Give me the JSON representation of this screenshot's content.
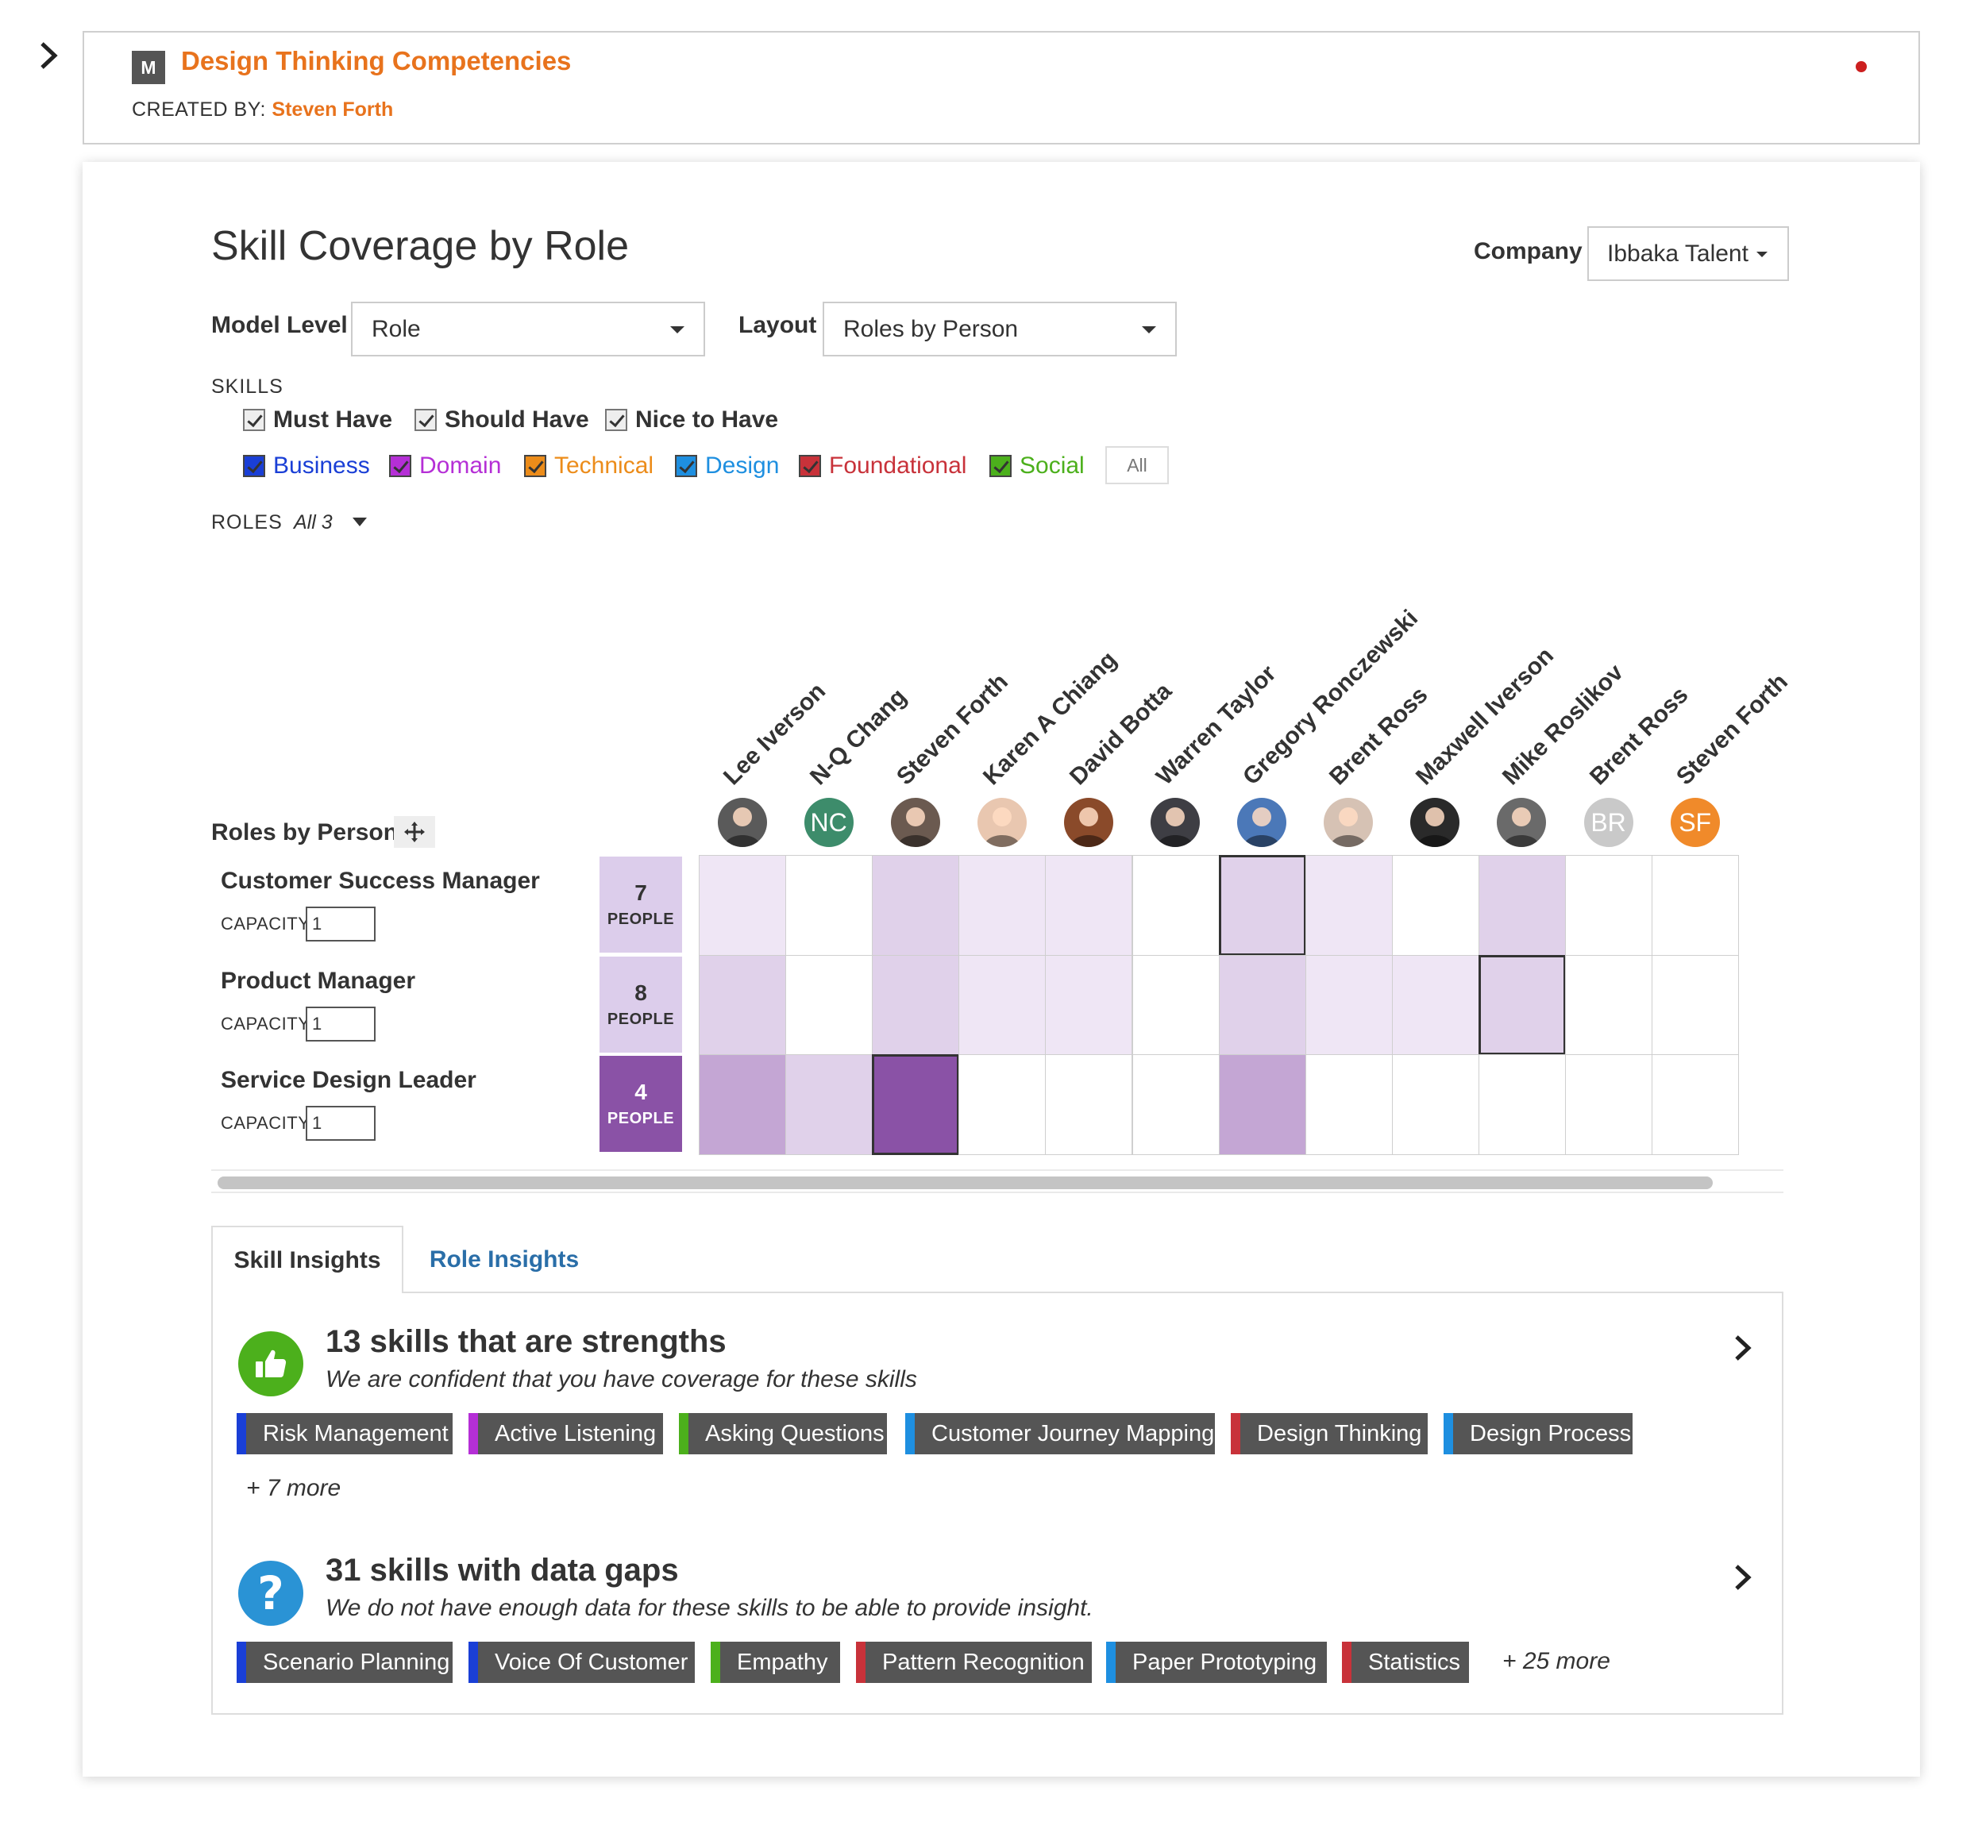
{
  "model": {
    "badge": "M",
    "title": "Design Thinking Competencies",
    "created_by_label": "CREATED BY:",
    "created_by": "Steven Forth"
  },
  "page_title": "Skill Coverage by Role",
  "company": {
    "label": "Company",
    "value": "Ibbaka Talent"
  },
  "model_level": {
    "label": "Model Level",
    "value": "Role"
  },
  "layout": {
    "label": "Layout",
    "value": "Roles by Person"
  },
  "skills": {
    "heading": "SKILLS",
    "levels": [
      "Must Have",
      "Should Have",
      "Nice to Have"
    ],
    "categories": [
      {
        "label": "Business",
        "color": "#1a3fd6"
      },
      {
        "label": "Domain",
        "color": "#b52fd6"
      },
      {
        "label": "Technical",
        "color": "#ec8c1a"
      },
      {
        "label": "Design",
        "color": "#1e8fe0"
      },
      {
        "label": "Foundational",
        "color": "#c8323a"
      },
      {
        "label": "Social",
        "color": "#4cb01c"
      }
    ],
    "all_button": "All"
  },
  "roles_filter": {
    "label": "ROLES",
    "value": "All 3"
  },
  "matrix": {
    "title": "Roles by Person",
    "capacity_label": "CAPACITY",
    "people_label": "PEOPLE",
    "people": [
      {
        "name": "Lee Iverson",
        "avatar": "photo",
        "bg": "#5a5a5a"
      },
      {
        "name": "N-Q Chang",
        "avatar": "NC",
        "bg": "#3d8c6b"
      },
      {
        "name": "Steven Forth",
        "avatar": "photo",
        "bg": "#6b5a50"
      },
      {
        "name": "Karen A Chiang",
        "avatar": "photo",
        "bg": "#e9c7b0"
      },
      {
        "name": "David Botta",
        "avatar": "photo",
        "bg": "#8a4a2a"
      },
      {
        "name": "Warren Taylor",
        "avatar": "photo",
        "bg": "#3e3e44"
      },
      {
        "name": "Gregory Ronczewski",
        "avatar": "photo",
        "bg": "#4b78b8"
      },
      {
        "name": "Brent Ross",
        "avatar": "photo",
        "bg": "#d6c2b4"
      },
      {
        "name": "Maxwell Iverson",
        "avatar": "photo",
        "bg": "#2a2a2a"
      },
      {
        "name": "Mike Roslikov",
        "avatar": "photo",
        "bg": "#6a6a6a"
      },
      {
        "name": "Brent Ross",
        "avatar": "BR",
        "bg": "#c9c9c9"
      },
      {
        "name": "Steven Forth",
        "avatar": "SF",
        "bg": "#f08a2a"
      }
    ],
    "roles": [
      {
        "name": "Customer Success Manager",
        "capacity": "1",
        "people": "7",
        "box_color": "#dccdeb",
        "text_color": "#333333",
        "levels": [
          1,
          0,
          2,
          1,
          1,
          0,
          2,
          1,
          0,
          2,
          0,
          0
        ],
        "selected": 6
      },
      {
        "name": "Product Manager",
        "capacity": "1",
        "people": "8",
        "box_color": "#dccdeb",
        "text_color": "#333333",
        "levels": [
          2,
          0,
          2,
          1,
          1,
          0,
          2,
          1,
          1,
          2,
          0,
          0
        ],
        "selected": 9
      },
      {
        "name": "Service Design Leader",
        "capacity": "1",
        "people": "4",
        "box_color": "#8a52a6",
        "text_color": "#ffffff",
        "levels": [
          3,
          2,
          4,
          0,
          0,
          0,
          3,
          0,
          0,
          0,
          0,
          0
        ],
        "selected": 2
      }
    ],
    "level_colors": [
      "#ffffff",
      "#efe6f5",
      "#e0d1ea",
      "#c4a6d4",
      "#8a52a6"
    ]
  },
  "tabs": {
    "skill": "Skill Insights",
    "role": "Role Insights"
  },
  "insights": [
    {
      "title": "13 skills that are strengths",
      "subtitle": "We are confident that you have coverage for these skills",
      "icon": "thumbs-up-icon",
      "icon_color": "#4cb01c",
      "tags": [
        {
          "label": "Risk Management",
          "color": "#1a3fd6"
        },
        {
          "label": "Active Listening",
          "color": "#b52fd6"
        },
        {
          "label": "Asking Questions",
          "color": "#4cb01c"
        },
        {
          "label": "Customer Journey Mapping",
          "color": "#1e8fe0"
        },
        {
          "label": "Design Thinking",
          "color": "#c8323a"
        },
        {
          "label": "Design Process",
          "color": "#1e8fe0"
        }
      ],
      "more": "+ 7 more"
    },
    {
      "title": "31 skills with data gaps",
      "subtitle": "We do not have enough data for these skills to be able to provide insight.",
      "icon": "question-icon",
      "icon_color": "#2a93d5",
      "tags": [
        {
          "label": "Scenario Planning",
          "color": "#1a3fd6"
        },
        {
          "label": "Voice Of Customer",
          "color": "#1a3fd6"
        },
        {
          "label": "Empathy",
          "color": "#4cb01c"
        },
        {
          "label": "Pattern Recognition",
          "color": "#c8323a"
        },
        {
          "label": "Paper Prototyping",
          "color": "#1e8fe0"
        },
        {
          "label": "Statistics",
          "color": "#c8323a"
        }
      ],
      "more": "+ 25 more"
    }
  ]
}
